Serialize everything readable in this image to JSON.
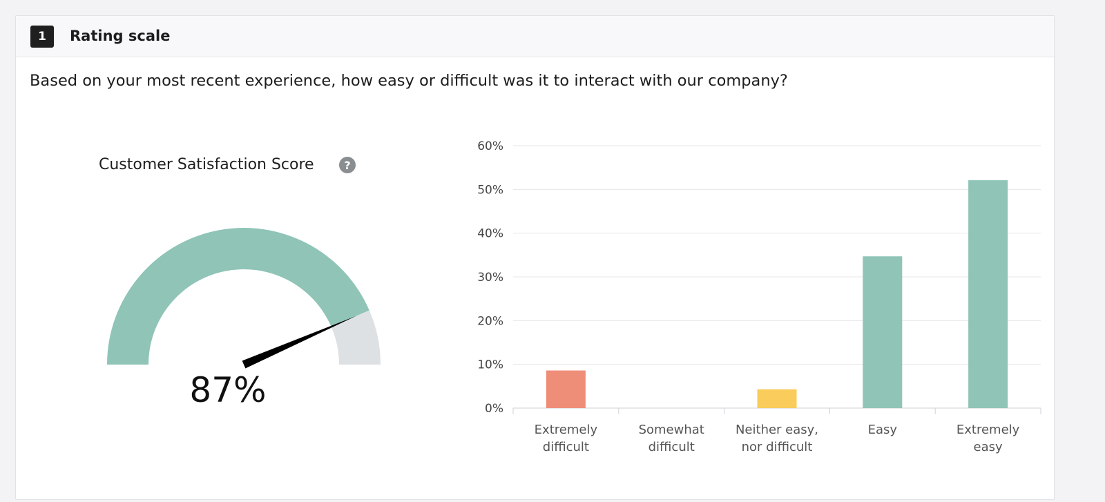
{
  "question": {
    "number": "1",
    "type_label": "Rating scale",
    "text": "Based on your most recent experience, how easy or difficult was it to interact with our company?"
  },
  "gauge": {
    "title": "Customer Satisfaction Score",
    "help_icon": "question-mark-icon",
    "help_glyph": "?",
    "value": 87,
    "value_label": "87%",
    "fill_color": "#8fc4b7",
    "track_color": "#dde1e3",
    "needle_color": "#000000"
  },
  "chart_data": {
    "type": "bar",
    "categories": [
      [
        "Extremely",
        "difficult"
      ],
      [
        "Somewhat",
        "difficult"
      ],
      [
        "Neither easy,",
        "nor difficult"
      ],
      [
        "Easy"
      ],
      [
        "Extremely",
        "easy"
      ]
    ],
    "values": [
      8.6,
      0,
      4.3,
      34.7,
      52.1
    ],
    "colors": [
      "#ef8e78",
      "#ef8e78",
      "#f9cc5b",
      "#8fc4b7",
      "#8fc4b7"
    ],
    "ylim": [
      0,
      60
    ],
    "yticks": [
      0,
      10,
      20,
      30,
      40,
      50,
      60
    ],
    "ytick_labels": [
      "0%",
      "10%",
      "20%",
      "30%",
      "40%",
      "50%",
      "60%"
    ],
    "grid": true
  }
}
